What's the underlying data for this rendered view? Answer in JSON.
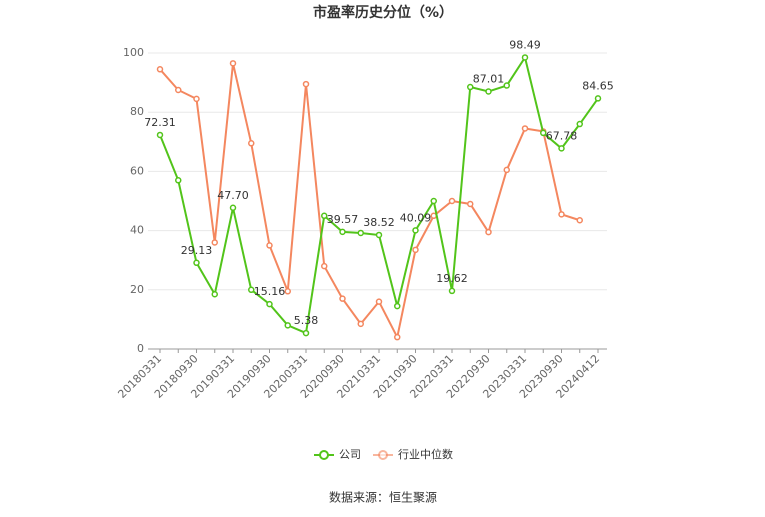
{
  "chart_data": {
    "type": "line",
    "title": "市盈率历史分位（%）",
    "categories": [
      "20180331",
      null,
      "20180930",
      null,
      "20190331",
      null,
      "20190930",
      null,
      "20200331",
      null,
      "20200930",
      null,
      "20210331",
      null,
      "20210930",
      null,
      "20220331",
      null,
      "20220930",
      null,
      "20230331",
      null,
      "20230930",
      null,
      "20240412"
    ],
    "series": [
      {
        "name": "公司",
        "color": "#52c41a",
        "values": [
          72.31,
          57,
          29.13,
          18.5,
          47.7,
          20,
          15.16,
          8,
          5.38,
          45,
          39.57,
          39.2,
          38.52,
          14.5,
          40.09,
          50,
          19.62,
          88.5,
          87.01,
          89,
          98.49,
          73,
          67.78,
          76,
          84.65
        ],
        "value_labels": [
          "72.31",
          null,
          "29.13",
          null,
          "47.70",
          null,
          "15.16",
          null,
          "5.38",
          null,
          "39.57",
          null,
          "38.52",
          null,
          "40.09",
          null,
          "19.62",
          null,
          "87.01",
          null,
          "98.49",
          null,
          "67.78",
          null,
          "84.65"
        ]
      },
      {
        "name": "行业中位数",
        "color": "#f4875f",
        "values": [
          94.5,
          87.5,
          84.5,
          36,
          96.5,
          69.5,
          35,
          19.5,
          89.5,
          28,
          17,
          8.5,
          16,
          4,
          33.5,
          45,
          50,
          49,
          39.5,
          60.5,
          74.5,
          73.5,
          45.5,
          43.5,
          null
        ]
      }
    ],
    "ylim": [
      0,
      100
    ],
    "yticks": [
      0,
      20,
      40,
      60,
      80,
      100
    ],
    "grid": true,
    "source": "数据来源：恒生聚源"
  }
}
